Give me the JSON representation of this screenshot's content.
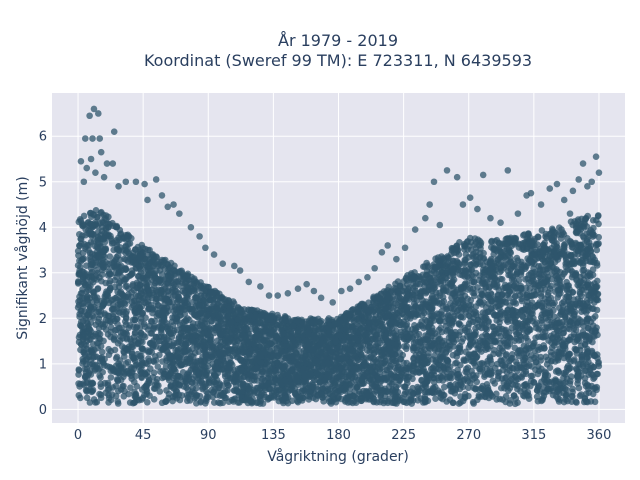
{
  "chart_data": {
    "type": "scatter",
    "title_line1": "År 1979 - 2019",
    "title_line2": "Koordinat (Sweref 99 TM): E 723311, N 6439593",
    "xlabel": "Vågriktning (grader)",
    "ylabel": "Signifikant våghöjd (m)",
    "xlim": [
      -18,
      378
    ],
    "ylim": [
      -0.3,
      6.95
    ],
    "xticks": [
      0,
      45,
      90,
      135,
      180,
      225,
      270,
      315,
      360
    ],
    "yticks": [
      0,
      1,
      2,
      3,
      4,
      5,
      6
    ],
    "grid": true,
    "marker_color": "#2f566c",
    "plot_bg": "#e5e5ef",
    "envelope_dense": [
      [
        0,
        4.2
      ],
      [
        10,
        4.4
      ],
      [
        20,
        4.3
      ],
      [
        30,
        4.0
      ],
      [
        45,
        3.6
      ],
      [
        60,
        3.3
      ],
      [
        75,
        3.0
      ],
      [
        90,
        2.7
      ],
      [
        105,
        2.4
      ],
      [
        120,
        2.2
      ],
      [
        135,
        2.1
      ],
      [
        150,
        2.0
      ],
      [
        165,
        2.0
      ],
      [
        180,
        2.0
      ],
      [
        195,
        2.3
      ],
      [
        210,
        2.6
      ],
      [
        225,
        2.9
      ],
      [
        240,
        3.2
      ],
      [
        255,
        3.5
      ],
      [
        270,
        3.8
      ],
      [
        285,
        3.7
      ],
      [
        300,
        3.8
      ],
      [
        315,
        3.9
      ],
      [
        330,
        4.0
      ],
      [
        345,
        4.2
      ],
      [
        360,
        4.3
      ]
    ],
    "outliers": [
      [
        8,
        6.45
      ],
      [
        11,
        6.6
      ],
      [
        14,
        6.5
      ],
      [
        5,
        5.95
      ],
      [
        10,
        5.95
      ],
      [
        15,
        5.95
      ],
      [
        25,
        6.1
      ],
      [
        2,
        5.45
      ],
      [
        6,
        5.3
      ],
      [
        9,
        5.5
      ],
      [
        12,
        5.2
      ],
      [
        16,
        5.65
      ],
      [
        20,
        5.4
      ],
      [
        24,
        5.4
      ],
      [
        4,
        5.0
      ],
      [
        18,
        5.1
      ],
      [
        28,
        4.9
      ],
      [
        33,
        5.0
      ],
      [
        40,
        5.0
      ],
      [
        46,
        4.95
      ],
      [
        54,
        5.05
      ],
      [
        58,
        4.7
      ],
      [
        48,
        4.6
      ],
      [
        66,
        4.5
      ],
      [
        70,
        4.3
      ],
      [
        62,
        4.45
      ],
      [
        78,
        4.0
      ],
      [
        84,
        3.8
      ],
      [
        88,
        3.55
      ],
      [
        94,
        3.4
      ],
      [
        100,
        3.2
      ],
      [
        108,
        3.15
      ],
      [
        112,
        3.05
      ],
      [
        118,
        2.8
      ],
      [
        126,
        2.7
      ],
      [
        132,
        2.5
      ],
      [
        138,
        2.5
      ],
      [
        145,
        2.55
      ],
      [
        152,
        2.65
      ],
      [
        158,
        2.75
      ],
      [
        163,
        2.6
      ],
      [
        168,
        2.45
      ],
      [
        176,
        2.35
      ],
      [
        182,
        2.6
      ],
      [
        188,
        2.65
      ],
      [
        194,
        2.8
      ],
      [
        200,
        2.9
      ],
      [
        205,
        3.1
      ],
      [
        210,
        3.45
      ],
      [
        214,
        3.6
      ],
      [
        220,
        3.3
      ],
      [
        226,
        3.55
      ],
      [
        233,
        3.95
      ],
      [
        240,
        4.2
      ],
      [
        243,
        4.5
      ],
      [
        246,
        5.0
      ],
      [
        250,
        4.05
      ],
      [
        255,
        5.25
      ],
      [
        262,
        5.1
      ],
      [
        266,
        4.5
      ],
      [
        271,
        4.65
      ],
      [
        276,
        4.4
      ],
      [
        280,
        5.15
      ],
      [
        285,
        4.2
      ],
      [
        292,
        4.1
      ],
      [
        297,
        5.25
      ],
      [
        304,
        4.3
      ],
      [
        310,
        4.7
      ],
      [
        313,
        4.75
      ],
      [
        320,
        4.5
      ],
      [
        326,
        4.85
      ],
      [
        331,
        4.95
      ],
      [
        336,
        4.6
      ],
      [
        342,
        4.8
      ],
      [
        346,
        5.05
      ],
      [
        349,
        5.4
      ],
      [
        352,
        4.9
      ],
      [
        355,
        5.0
      ],
      [
        358,
        5.55
      ],
      [
        360,
        5.2
      ],
      [
        351,
        4.2
      ],
      [
        340,
        4.3
      ]
    ]
  }
}
